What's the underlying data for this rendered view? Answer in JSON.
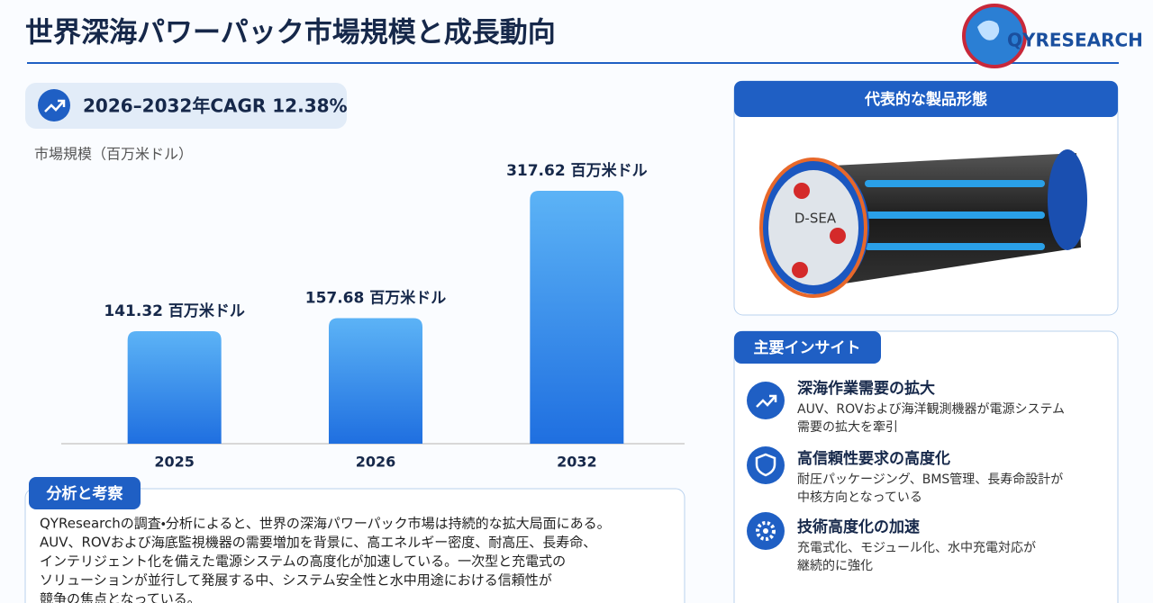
{
  "header": {
    "title": "世界深海パワーパック市場規模と成長動向",
    "logo": "QYRESEARCH"
  },
  "cagr": "2026–2032年CAGR  12.38%",
  "chart_data": {
    "type": "bar",
    "y_label": "市場規模（百万米ドル）",
    "categories": [
      "2025",
      "2026",
      "2032"
    ],
    "values": [
      141.32,
      157.68,
      317.62
    ],
    "value_labels": [
      "141.32 百万米ドル",
      "157.68 百万米ドル",
      "317.62 百万米ドル"
    ],
    "color": "#1f6fe0"
  },
  "analysis": {
    "title": "分析と考察",
    "lines": [
      "QYResearchの調査・分析によると、世界の深海パワーパック市場は持続的な拡大局面にある。",
      "AUV、ROVおよび海底監視機器の需要増加を背景に、高エネルギー密度、耐高圧、長寿命、",
      "インテリジェント化を備えた電源システムの高度化が加速している。一次型と充電式の",
      "ソリューションが並行して発展する中、システム安全性と水中用途における信頼性が",
      "競争の焦点となっている。"
    ]
  },
  "product": {
    "title": "代表的な製品形態",
    "label": "D-SEA"
  },
  "insights": {
    "title": "主要インサイト",
    "items": [
      {
        "title": "深海作業需要の拡大",
        "lines": [
          "AUV、ROVおよび海洋観測機器が電源システム",
          "需要の拡大を牽引"
        ]
      },
      {
        "title": "高信頼性要求の高度化",
        "lines": [
          "耐圧パッケージング、BMS管理、長寿命設計が",
          "中核方向となっている"
        ]
      },
      {
        "title": "技術高度化の加速",
        "lines": [
          "充電式化、モジュール化、水中充電対応が",
          "継続的に強化"
        ]
      }
    ]
  }
}
